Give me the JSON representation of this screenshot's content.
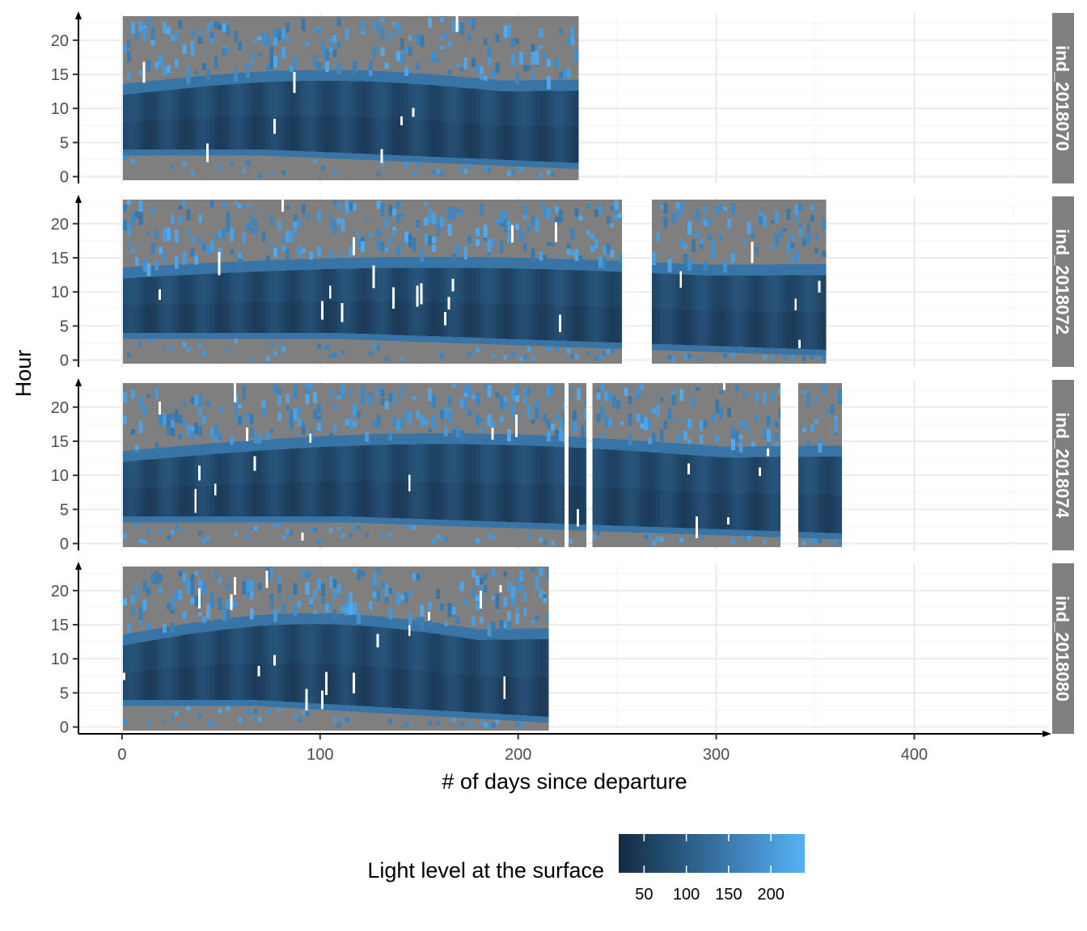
{
  "chart_data": {
    "type": "heatmap",
    "xlabel": "# of days since departure",
    "ylabel": "Hour",
    "xlim": [
      -22,
      468
    ],
    "ylim": [
      -1,
      24
    ],
    "x_ticks": [
      0,
      100,
      200,
      300,
      400
    ],
    "y_ticks": [
      0,
      5,
      10,
      15,
      20
    ],
    "grid": true,
    "legend": {
      "title": "Light level at the surface",
      "position": "bottom",
      "range": [
        20,
        240
      ],
      "ticks": [
        50,
        100,
        150,
        200
      ],
      "colors": {
        "low": "#132b43",
        "high": "#56b1f7",
        "na": "#7f7f7f"
      }
    },
    "facets": [
      {
        "label": "ind_2018070",
        "segments": [
          [
            1,
            230
          ]
        ],
        "sunrise_start": 4,
        "sunrise_end": 2,
        "sunset_start": 12,
        "sunset_end": 14
      },
      {
        "label": "ind_2018072",
        "segments": [
          [
            1,
            252
          ],
          [
            268,
            355
          ]
        ],
        "sunrise_start": 4,
        "sunrise_end": 1.5,
        "sunset_start": 12,
        "sunset_end": 13.5
      },
      {
        "label": "ind_2018074",
        "segments": [
          [
            1,
            223
          ],
          [
            226,
            234
          ],
          [
            238,
            332
          ],
          [
            342,
            363
          ]
        ],
        "sunrise_start": 4,
        "sunrise_end": 1.5,
        "sunset_start": 12,
        "sunset_end": 14.5
      },
      {
        "label": "ind_2018080",
        "segments": [
          [
            1,
            215
          ]
        ],
        "sunrise_start": 4,
        "sunrise_end": 1.5,
        "sunset_start": 12,
        "sunset_end": 15
      }
    ]
  }
}
